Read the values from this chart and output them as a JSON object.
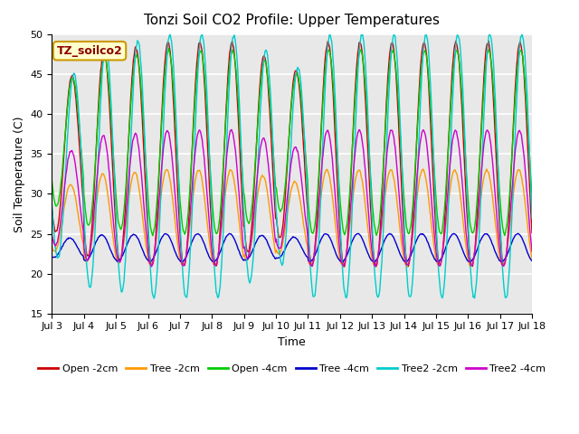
{
  "title": "Tonzi Soil CO2 Profile: Upper Temperatures",
  "ylabel": "Soil Temperature (C)",
  "xlabel": "Time",
  "ylim": [
    15,
    50
  ],
  "annotation": "TZ_soilco2",
  "background_color": "#ffffff",
  "plot_bg_color": "#e8e8e8",
  "grid_color": "#ffffff",
  "series": [
    {
      "label": "Open -2cm",
      "color": "#cc0000"
    },
    {
      "label": "Tree -2cm",
      "color": "#ff9900"
    },
    {
      "label": "Open -4cm",
      "color": "#00cc00"
    },
    {
      "label": "Tree -4cm",
      "color": "#0000cc"
    },
    {
      "label": "Tree2 -2cm",
      "color": "#00cccc"
    },
    {
      "label": "Tree2 -4cm",
      "color": "#cc00cc"
    }
  ],
  "xtick_labels": [
    "Jul 3",
    "Jul 4",
    "Jul 5",
    "Jul 6",
    "Jul 7",
    "Jul 8",
    "Jul 9",
    "Jul 10",
    "Jul 11",
    "Jul 12",
    "Jul 13",
    "Jul 14",
    "Jul 15",
    "Jul 16",
    "Jul 17",
    "Jul 18"
  ],
  "ytick_labels": [
    "15",
    "20",
    "25",
    "30",
    "35",
    "40",
    "45",
    "50"
  ],
  "ytick_values": [
    15,
    20,
    25,
    30,
    35,
    40,
    45,
    50
  ],
  "n_days": 15,
  "points_per_day": 48
}
